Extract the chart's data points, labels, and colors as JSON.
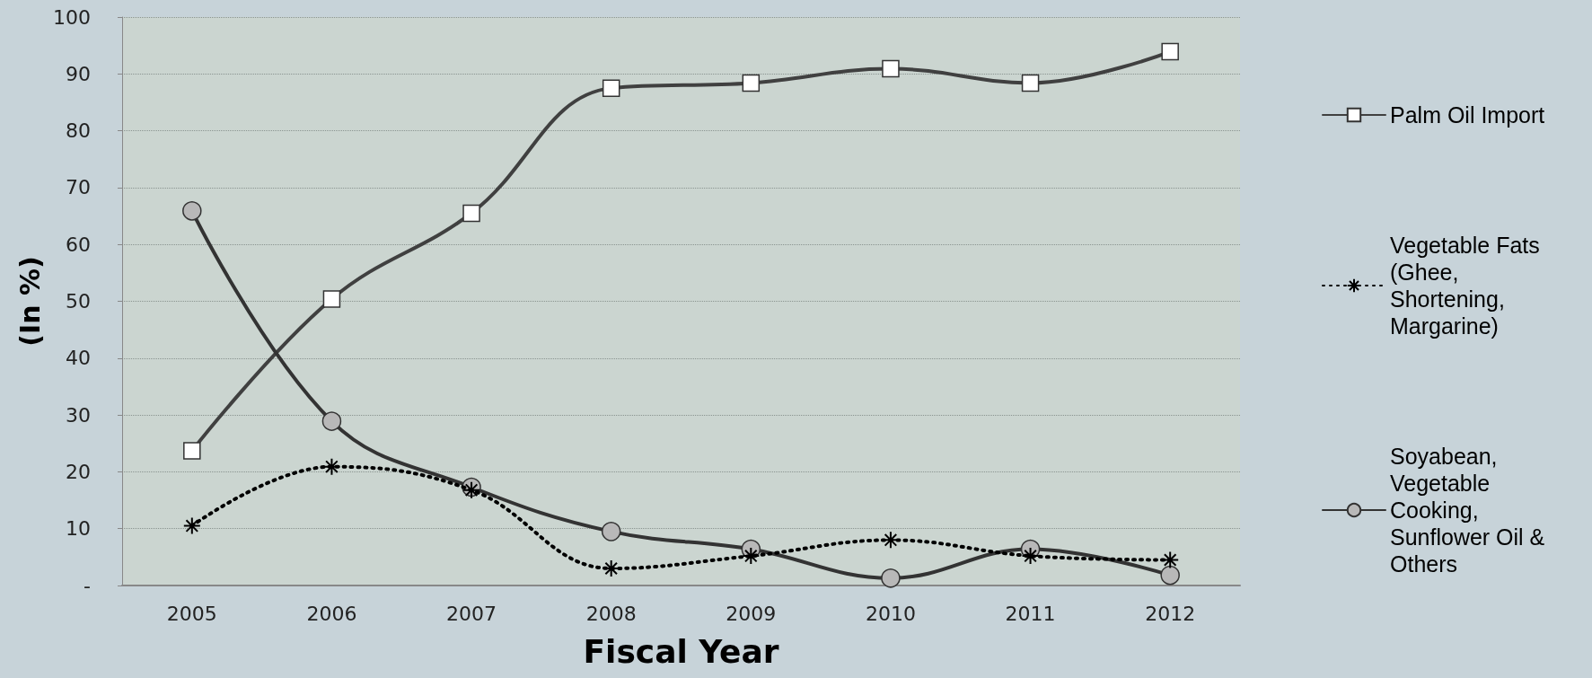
{
  "chart_data": {
    "type": "line",
    "xlabel": "Fiscal Year",
    "ylabel": "(In %)",
    "categories": [
      "2005",
      "2006",
      "2007",
      "2008",
      "2009",
      "2010",
      "2011",
      "2012"
    ],
    "series": [
      {
        "name": "Palm Oil Import",
        "color": "#404040",
        "marker": "square",
        "line_style": "solid",
        "values": [
          23.7,
          50.4,
          65.5,
          87.5,
          88.4,
          90.9,
          88.4,
          93.9
        ]
      },
      {
        "name": "Vegetable Fats (Ghee, Shortening, Margarine)",
        "color": "#000000",
        "marker": "cross",
        "line_style": "dotted",
        "values": [
          10.5,
          20.9,
          16.8,
          3.0,
          5.2,
          8.0,
          5.2,
          4.5
        ]
      },
      {
        "name": "Soyabean,Vegetable Cooking, Sunflower Oil & Others",
        "color": "#333333",
        "marker": "circle",
        "line_style": "solid",
        "values": [
          65.9,
          28.9,
          17.3,
          9.5,
          6.4,
          1.3,
          6.4,
          1.8
        ]
      }
    ],
    "ylim": [
      0,
      100
    ],
    "yticks": [
      {
        "value": 0,
        "label": "-"
      },
      10,
      20,
      30,
      40,
      50,
      60,
      70,
      80,
      90,
      100
    ],
    "grid": "y",
    "legend": "right"
  }
}
